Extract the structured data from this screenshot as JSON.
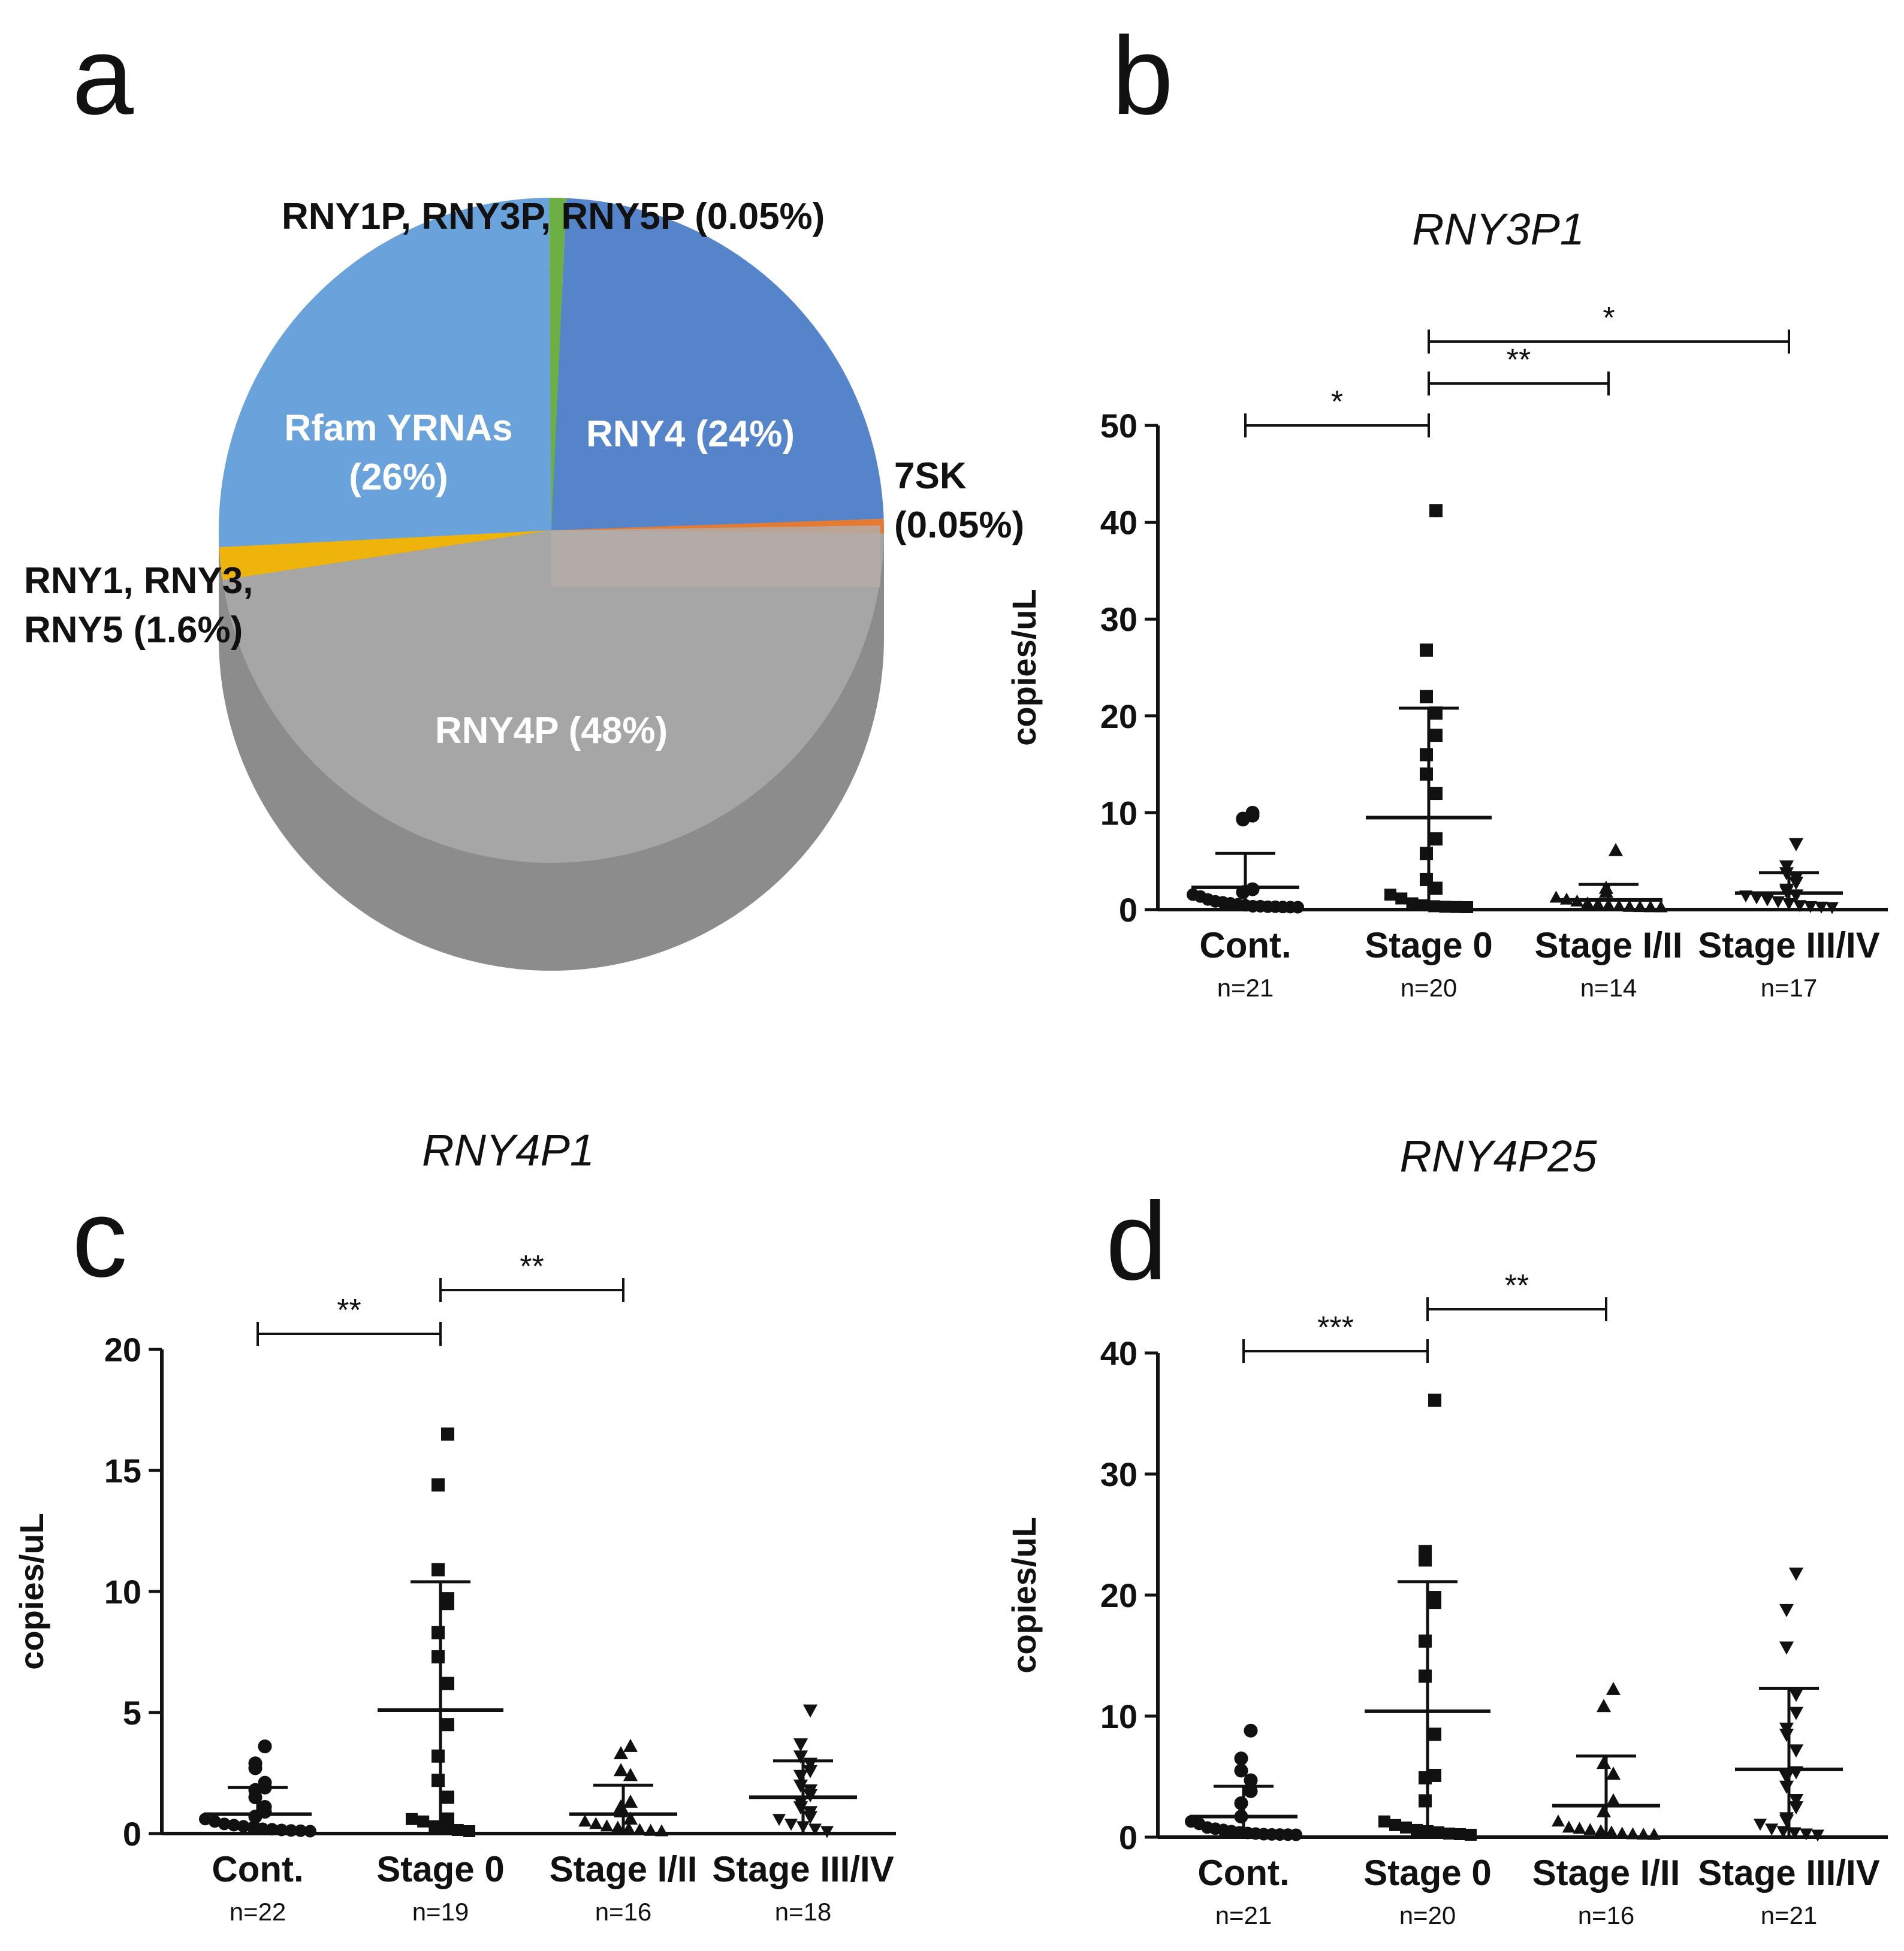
{
  "chart_data": [
    {
      "panel": "a",
      "type": "pie",
      "slices": [
        {
          "label": "RNY4P (48%)",
          "value": 48,
          "color": "#a6a6a6"
        },
        {
          "label": "Rfam YRNAs\n(26%)",
          "value": 26,
          "color": "#6aa3dc"
        },
        {
          "label": "RNY4 (24%)",
          "value": 24,
          "color": "#5584cb"
        },
        {
          "label": "RNY1, RNY3,\nRNY5 (1.6%)",
          "value": 1.6,
          "color": "#efb40c"
        },
        {
          "label": "RNY1P, RNY3P, RNY5P (0.05%)",
          "value": 0.05,
          "color": "#6cb043"
        },
        {
          "label": "7SK\n(0.05%)",
          "value": 0.05,
          "color": "#e57b33"
        }
      ]
    },
    {
      "panel": "b",
      "type": "scatter",
      "title": "RNY3P1",
      "ylabel": "copies/uL",
      "ylim": [
        0,
        50
      ],
      "yticks": [
        0,
        10,
        20,
        30,
        40,
        50
      ],
      "categories": [
        "Cont.",
        "Stage 0",
        "Stage I/II",
        "Stage III/IV"
      ],
      "n_labels": [
        "n=21",
        "n=20",
        "n=14",
        "n=17"
      ],
      "markers": [
        "circle",
        "square",
        "triangle",
        "triangle-down"
      ],
      "groups": [
        {
          "mean": 2.3,
          "sd_upper": 5.8,
          "points": [
            9.7,
            9.4,
            9.3,
            10.0,
            2.1,
            1.8,
            1.3,
            1.1,
            0.8,
            0.6,
            0.5,
            0.4,
            0.3,
            0.2,
            0.1,
            0.1,
            0.05,
            0.05,
            0.02,
            0.01,
            0
          ]
        },
        {
          "mean": 9.5,
          "sd_upper": 20.8,
          "points": [
            41.2,
            26.8,
            22.0,
            20.3,
            18.0,
            16.0,
            14.0,
            12.0,
            7.3,
            5.8,
            3.1,
            2.2,
            1.3,
            0.9,
            0.4,
            0.2,
            0.1,
            0.05,
            0.02,
            0
          ]
        },
        {
          "mean": 1.0,
          "sd_upper": 2.6,
          "points": [
            6.1,
            2.2,
            1.8,
            1.0,
            0.8,
            0.6,
            0.4,
            0.3,
            0.2,
            0.1,
            0.05,
            0.02,
            0.01,
            0
          ]
        },
        {
          "mean": 1.7,
          "sd_upper": 3.8,
          "points": [
            6.8,
            4.5,
            3.8,
            3.3,
            2.8,
            2.1,
            1.9,
            1.5,
            1.2,
            1.0,
            0.8,
            0.6,
            0.4,
            0.2,
            0.1,
            0.05,
            0
          ]
        }
      ],
      "significance": [
        {
          "from": 0,
          "to": 1,
          "label": "*"
        },
        {
          "from": 1,
          "to": 2,
          "label": "**"
        },
        {
          "from": 1,
          "to": 3,
          "label": "*"
        }
      ]
    },
    {
      "panel": "c",
      "type": "scatter",
      "title": "RNY4P1",
      "ylabel": "copies/uL",
      "ylim": [
        0,
        20
      ],
      "yticks": [
        0,
        5,
        10,
        15,
        20
      ],
      "categories": [
        "Cont.",
        "Stage 0",
        "Stage I/II",
        "Stage III/IV"
      ],
      "n_labels": [
        "n=22",
        "n=19",
        "n=16",
        "n=18"
      ],
      "markers": [
        "circle",
        "square",
        "triangle",
        "triangle-down"
      ],
      "groups": [
        {
          "mean": 0.8,
          "sd_upper": 1.9,
          "points": [
            3.6,
            2.9,
            2.7,
            2.1,
            1.9,
            1.8,
            1.5,
            1.1,
            0.9,
            0.7,
            0.5,
            0.4,
            0.3,
            0.25,
            0.2,
            0.15,
            0.1,
            0.08,
            0.05,
            0.03,
            0.02,
            0
          ]
        },
        {
          "mean": 5.1,
          "sd_upper": 10.4,
          "points": [
            16.5,
            14.4,
            10.9,
            9.7,
            9.5,
            8.3,
            7.3,
            6.2,
            4.5,
            3.2,
            2.2,
            1.5,
            0.6,
            0.5,
            0.4,
            0.2,
            0.1,
            0.05,
            0
          ]
        },
        {
          "mean": 0.8,
          "sd_upper": 2.0,
          "points": [
            3.6,
            3.3,
            2.6,
            2.4,
            1.3,
            1.1,
            0.9,
            0.6,
            0.4,
            0.3,
            0.2,
            0.15,
            0.1,
            0.05,
            0.02,
            0
          ]
        },
        {
          "mean": 1.5,
          "sd_upper": 3.0,
          "points": [
            5.1,
            3.7,
            3.2,
            2.9,
            2.6,
            2.4,
            2.0,
            1.8,
            1.6,
            1.3,
            1.1,
            0.9,
            0.7,
            0.5,
            0.3,
            0.2,
            0.1,
            0
          ]
        }
      ],
      "significance": [
        {
          "from": 0,
          "to": 1,
          "label": "**"
        },
        {
          "from": 1,
          "to": 2,
          "label": "**"
        }
      ]
    },
    {
      "panel": "d",
      "type": "scatter",
      "title": "RNY4P25",
      "ylabel": "copies/uL",
      "ylim": [
        0,
        40
      ],
      "yticks": [
        0,
        10,
        20,
        30,
        40
      ],
      "categories": [
        "Cont.",
        "Stage 0",
        "Stage I/II",
        "Stage III/IV"
      ],
      "n_labels": [
        "n=21",
        "n=20",
        "n=16",
        "n=21"
      ],
      "markers": [
        "circle",
        "square",
        "triangle",
        "triangle-down"
      ],
      "groups": [
        {
          "mean": 1.7,
          "sd_upper": 4.2,
          "points": [
            8.8,
            6.5,
            5.5,
            4.7,
            3.8,
            2.8,
            1.7,
            1.1,
            0.9,
            0.6,
            0.5,
            0.4,
            0.3,
            0.2,
            0.15,
            0.1,
            0.05,
            0.03,
            0.02,
            0.01,
            0
          ]
        },
        {
          "mean": 10.4,
          "sd_upper": 21.1,
          "points": [
            36.1,
            23.6,
            22.9,
            19.8,
            19.4,
            16.2,
            13.3,
            8.5,
            5.1,
            4.9,
            3.0,
            1.1,
            0.8,
            0.6,
            0.4,
            0.3,
            0.2,
            0.1,
            0.05,
            0
          ]
        },
        {
          "mean": 2.6,
          "sd_upper": 6.7,
          "points": [
            12.2,
            10.8,
            6.1,
            5.2,
            3.0,
            2.1,
            1.1,
            0.6,
            0.5,
            0.4,
            0.3,
            0.2,
            0.1,
            0.05,
            0.02,
            0
          ]
        },
        {
          "mean": 5.6,
          "sd_upper": 12.3,
          "points": [
            21.8,
            18.8,
            15.7,
            11.8,
            10.3,
            9.0,
            8.5,
            7.2,
            5.4,
            5.0,
            4.2,
            3.1,
            2.5,
            1.6,
            1.4,
            0.9,
            0.5,
            0.3,
            0.2,
            0.1,
            0
          ]
        }
      ],
      "significance": [
        {
          "from": 0,
          "to": 1,
          "label": "***"
        },
        {
          "from": 1,
          "to": 2,
          "label": "**"
        }
      ]
    }
  ],
  "panel_letters": [
    "a",
    "b",
    "c",
    "d"
  ],
  "colors": {
    "ink": "#111111",
    "pie_side": "#8c8c8c",
    "pie_inner_side": "#b4aba8"
  }
}
